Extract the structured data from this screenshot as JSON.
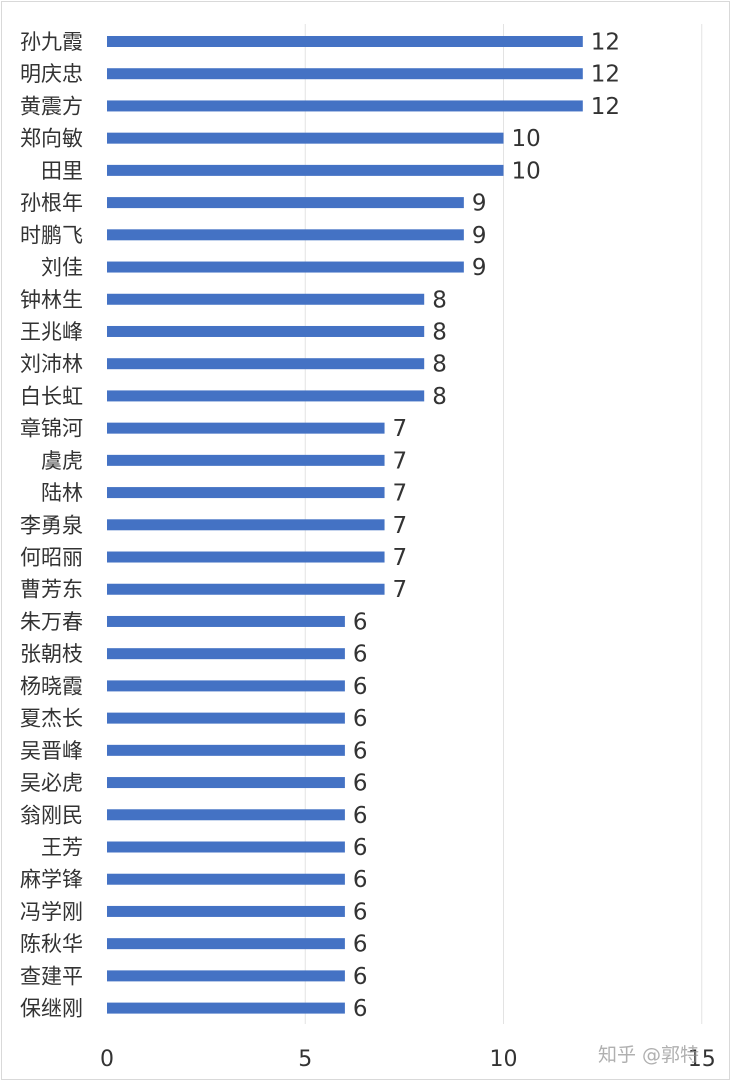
{
  "chart_data": {
    "type": "bar",
    "orientation": "horizontal",
    "categories": [
      "孙九霞",
      "明庆忠",
      "黄震方",
      "郑向敏",
      "田里",
      "孙根年",
      "时鹏飞",
      "刘佳",
      "钟林生",
      "王兆峰",
      "刘沛林",
      "白长虹",
      "章锦河",
      "虞虎",
      "陆林",
      "李勇泉",
      "何昭丽",
      "曹芳东",
      "朱万春",
      "张朝枝",
      "杨晓霞",
      "夏杰长",
      "吴晋峰",
      "吴必虎",
      "翁刚民",
      "王芳",
      "麻学锋",
      "冯学刚",
      "陈秋华",
      "查建平",
      "保继刚"
    ],
    "values": [
      12,
      12,
      12,
      10,
      10,
      9,
      9,
      9,
      8,
      8,
      8,
      8,
      7,
      7,
      7,
      7,
      7,
      7,
      6,
      6,
      6,
      6,
      6,
      6,
      6,
      6,
      6,
      6,
      6,
      6,
      6
    ],
    "value_labels": [
      "12",
      "12",
      "12",
      "10",
      "10",
      "9",
      "9",
      "9",
      "8",
      "8",
      "8",
      "8",
      "7",
      "7",
      "7",
      "7",
      "7",
      "7",
      "6",
      "6",
      "6",
      "6",
      "6",
      "6",
      "6",
      "6",
      "6",
      "6",
      "6",
      "6",
      "6"
    ],
    "x_ticks": [
      "0",
      "5",
      "10",
      "15"
    ],
    "xlim": [
      0,
      15
    ],
    "grid": "vertical",
    "legend": "none",
    "bar_color": "#4472c4",
    "title": "",
    "xlabel": "",
    "ylabel": ""
  },
  "watermark": "知乎 @郭特"
}
